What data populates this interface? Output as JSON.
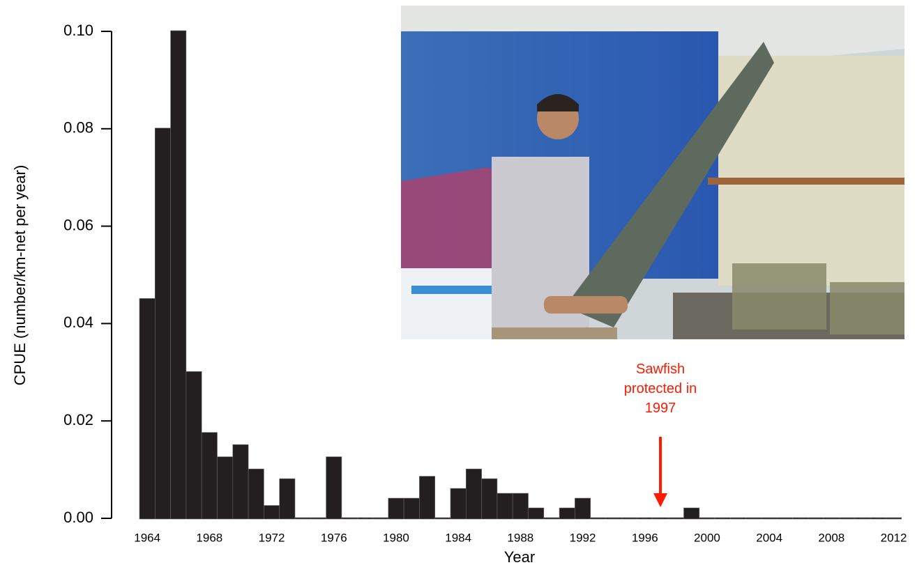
{
  "chart_data": {
    "type": "bar",
    "x": [
      1964,
      1965,
      1966,
      1967,
      1968,
      1969,
      1970,
      1971,
      1972,
      1973,
      1974,
      1975,
      1976,
      1977,
      1978,
      1979,
      1980,
      1981,
      1982,
      1983,
      1984,
      1985,
      1986,
      1987,
      1988,
      1989,
      1990,
      1991,
      1992,
      1993,
      1994,
      1995,
      1996,
      1997,
      1998,
      1999,
      2000,
      2001,
      2002,
      2003,
      2004,
      2005,
      2006,
      2007,
      2008,
      2009,
      2010,
      2011,
      2012
    ],
    "values": [
      0.045,
      0.08,
      0.1,
      0.03,
      0.0175,
      0.0125,
      0.015,
      0.01,
      0.0025,
      0.008,
      0,
      0,
      0.0125,
      0,
      0,
      0,
      0.004,
      0.004,
      0.0085,
      0,
      0.006,
      0.01,
      0.008,
      0.005,
      0.005,
      0.002,
      0,
      0.002,
      0.004,
      0,
      0,
      0,
      0,
      0,
      0,
      0.002,
      0,
      0,
      0,
      0,
      0,
      0,
      0,
      0,
      0,
      0,
      0,
      0,
      0
    ],
    "color": "#231f20",
    "xlim": [
      1963.5,
      2012.5
    ],
    "xticks": [
      1964,
      1968,
      1972,
      1976,
      1980,
      1984,
      1988,
      1992,
      1996,
      2000,
      2004,
      2008,
      2012
    ],
    "ylim": [
      0,
      0.1
    ],
    "yticks": [
      {
        "value": 0,
        "label": "0.00"
      },
      {
        "value": 0.02,
        "label": "0.02"
      },
      {
        "value": 0.04,
        "label": "0.04"
      },
      {
        "value": 0.06,
        "label": "0.06"
      },
      {
        "value": 0.08,
        "label": "0.08"
      },
      {
        "value": 0.1,
        "label": "0.10"
      }
    ],
    "x_label": "Year",
    "y_label": "CPUE (number/km-net per year)",
    "annotation": {
      "text": "Sawfish protected in 1997",
      "x": 1997,
      "color": "#ff1a00"
    }
  }
}
